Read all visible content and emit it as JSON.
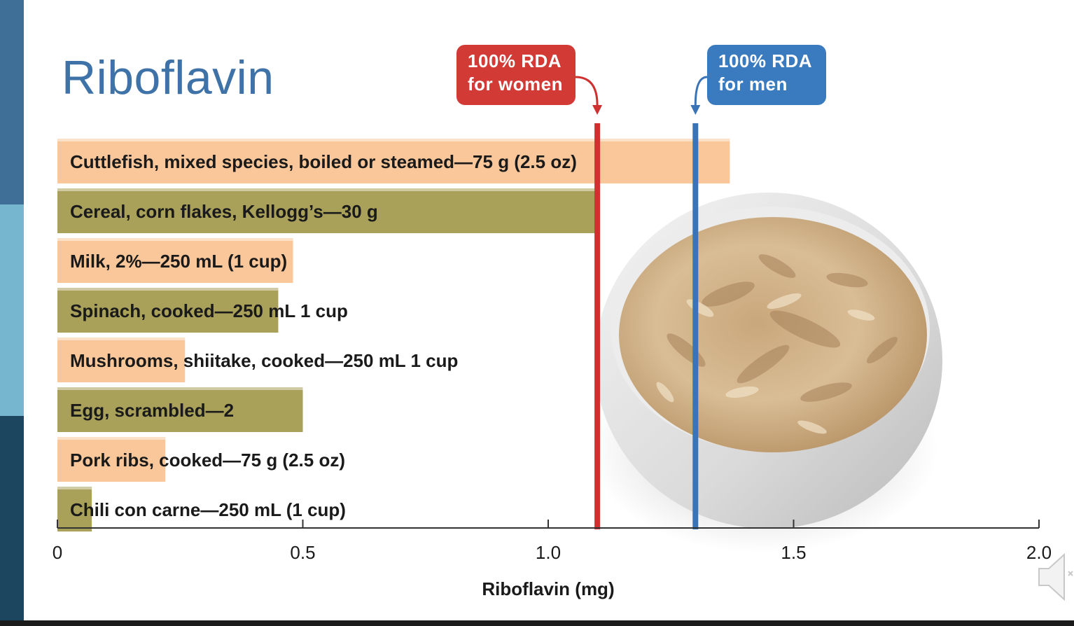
{
  "slide": {
    "title": "Riboflavin",
    "stripe_colors": [
      "#3f6e97",
      "#76b6cf",
      "#1c4560"
    ],
    "accent": "#3f73a8"
  },
  "callouts": {
    "women": {
      "line1": "100% RDA",
      "line2": "for women",
      "color": "#d23a36"
    },
    "men": {
      "line1": "100% RDA",
      "line2": "for men",
      "color": "#3a7bbf"
    }
  },
  "chart_data": {
    "type": "bar",
    "orientation": "horizontal",
    "xlabel": "Riboflavin (mg)",
    "xlim": [
      0,
      2.0
    ],
    "xticks": [
      0,
      0.5,
      1.0,
      1.5,
      2.0
    ],
    "xtick_labels": [
      "0",
      "0.5",
      "1.0",
      "1.5",
      "2.0"
    ],
    "categories": [
      "Cuttlefish, mixed species, boiled or steamed—75 g (2.5 oz)",
      "Cereal, corn flakes, Kellogg’s—30 g",
      "Milk, 2%—250 mL (1 cup)",
      "Spinach, cooked—250 mL 1 cup",
      "Mushrooms, shiitake, cooked—250 mL 1 cup",
      "Egg, scrambled—2",
      "Pork ribs, cooked—75 g (2.5 oz)",
      "Chili con carne—250 mL (1 cup)"
    ],
    "values": [
      1.37,
      1.1,
      0.48,
      0.45,
      0.26,
      0.5,
      0.22,
      0.07
    ],
    "bar_colors": [
      "#f9c79a",
      "#a9a05a",
      "#f9c79a",
      "#a9a05a",
      "#f9c79a",
      "#a9a05a",
      "#f9c79a",
      "#a9a05a"
    ],
    "reference_lines": [
      {
        "name": "100% RDA for women",
        "value": 1.1,
        "color": "#cf3131"
      },
      {
        "name": "100% RDA for men",
        "value": 1.3,
        "color": "#3a74b6"
      }
    ],
    "grid": false
  }
}
